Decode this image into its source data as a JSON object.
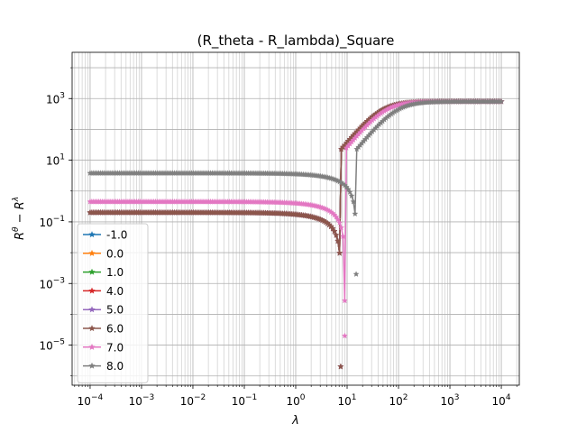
{
  "chart_data": {
    "type": "line",
    "title": "(R_theta - R_lambda)_Square",
    "xlabel_base": "λ",
    "ylabel_base": "R",
    "ylabel_sup_theta": "θ",
    "ylabel_minus": " − ",
    "ylabel_sup_lambda": "λ",
    "xscale": "log",
    "yscale": "log",
    "xlim_exp": [
      -4.35,
      4.35
    ],
    "ylim_exp": [
      -6.3,
      4.5
    ],
    "grid": true,
    "legend_position": "lower-left",
    "marker": "star",
    "x_ticks": [
      {
        "base": "10",
        "exp": "−4"
      },
      {
        "base": "10",
        "exp": "−3"
      },
      {
        "base": "10",
        "exp": "−2"
      },
      {
        "base": "10",
        "exp": "−1"
      },
      {
        "base": "10",
        "exp": "0"
      },
      {
        "base": "10",
        "exp": "1"
      },
      {
        "base": "10",
        "exp": "2"
      },
      {
        "base": "10",
        "exp": "3"
      },
      {
        "base": "10",
        "exp": "4"
      }
    ],
    "y_ticks": [
      {
        "base": "10",
        "exp": "−5"
      },
      {
        "base": "10",
        "exp": "−3"
      },
      {
        "base": "10",
        "exp": "−1"
      },
      {
        "base": "10",
        "exp": "1"
      },
      {
        "base": "10",
        "exp": "3"
      }
    ],
    "series": [
      {
        "name": "-1.0",
        "color": "#1f77b4",
        "plateau": 0.2,
        "dip_x": 7.5,
        "dip_y": 2e-06
      },
      {
        "name": "0.0",
        "color": "#ff7f0e",
        "plateau": 0.2,
        "dip_x": 7.5,
        "dip_y": 2e-06
      },
      {
        "name": "1.0",
        "color": "#2ca02c",
        "plateau": 0.2,
        "dip_x": 7.5,
        "dip_y": 2e-06
      },
      {
        "name": "4.0",
        "color": "#d62728",
        "plateau": 0.2,
        "dip_x": 7.5,
        "dip_y": 2e-06
      },
      {
        "name": "5.0",
        "color": "#9467bd",
        "plateau": 0.2,
        "dip_x": 7.5,
        "dip_y": 2e-06
      },
      {
        "name": "6.0",
        "color": "#8c564b",
        "plateau": 0.2,
        "dip_x": 7.5,
        "dip_y": 2e-06
      },
      {
        "name": "7.0",
        "color": "#e377c2",
        "plateau": 0.45,
        "dip_x": 9.0,
        "dip_y": 2e-05
      },
      {
        "name": "8.0",
        "color": "#7f7f7f",
        "plateau": 3.8,
        "dip_x": 15.0,
        "dip_y": 0.002
      }
    ],
    "high_end_value": 800
  }
}
